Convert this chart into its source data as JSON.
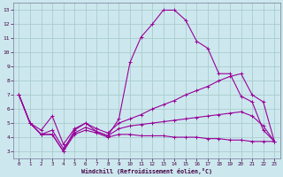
{
  "xlabel": "Windchill (Refroidissement éolien,°C)",
  "background_color": "#cce8ee",
  "grid_color": "#aacccc",
  "line_color": "#990099",
  "xlim": [
    -0.5,
    23.5
  ],
  "ylim": [
    2.5,
    13.5
  ],
  "xticks": [
    0,
    1,
    2,
    3,
    4,
    5,
    6,
    7,
    8,
    9,
    10,
    11,
    12,
    13,
    14,
    15,
    16,
    17,
    18,
    19,
    20,
    21,
    22,
    23
  ],
  "yticks": [
    3,
    4,
    5,
    6,
    7,
    8,
    9,
    10,
    11,
    12,
    13
  ],
  "s1_x": [
    0,
    1,
    2,
    3,
    4,
    5,
    6,
    7,
    8,
    9,
    10,
    11,
    12,
    13,
    14,
    15,
    16,
    17,
    18,
    19,
    20,
    21,
    22,
    23
  ],
  "s1_y": [
    7.0,
    5.0,
    4.2,
    4.2,
    3.0,
    4.5,
    5.0,
    4.4,
    4.1,
    5.3,
    9.3,
    11.1,
    12.0,
    13.0,
    13.0,
    12.3,
    10.8,
    10.3,
    8.5,
    8.5,
    6.9,
    6.5,
    4.5,
    3.7
  ],
  "s2_x": [
    0,
    1,
    2,
    3,
    4,
    5,
    6,
    7,
    8,
    9,
    10,
    11,
    12,
    13,
    14,
    15,
    16,
    17,
    18,
    19,
    20,
    21,
    22,
    23
  ],
  "s2_y": [
    7.0,
    5.0,
    4.5,
    5.5,
    3.5,
    4.6,
    5.0,
    4.6,
    4.3,
    5.0,
    5.3,
    5.6,
    6.0,
    6.3,
    6.6,
    7.0,
    7.3,
    7.6,
    8.0,
    8.3,
    8.5,
    7.0,
    6.5,
    3.7
  ],
  "s3_x": [
    0,
    1,
    2,
    3,
    4,
    5,
    6,
    7,
    8,
    9,
    10,
    11,
    12,
    13,
    14,
    15,
    16,
    17,
    18,
    19,
    20,
    21,
    22,
    23
  ],
  "s3_y": [
    7.0,
    5.0,
    4.2,
    4.5,
    3.2,
    4.3,
    4.7,
    4.4,
    4.1,
    4.6,
    4.8,
    4.9,
    5.0,
    5.1,
    5.2,
    5.3,
    5.4,
    5.5,
    5.6,
    5.7,
    5.8,
    5.5,
    4.8,
    3.7
  ],
  "s4_x": [
    0,
    1,
    2,
    3,
    4,
    5,
    6,
    7,
    8,
    9,
    10,
    11,
    12,
    13,
    14,
    15,
    16,
    17,
    18,
    19,
    20,
    21,
    22,
    23
  ],
  "s4_y": [
    7.0,
    5.0,
    4.2,
    4.2,
    3.0,
    4.2,
    4.5,
    4.3,
    4.0,
    4.2,
    4.2,
    4.1,
    4.1,
    4.1,
    4.0,
    4.0,
    4.0,
    3.9,
    3.9,
    3.8,
    3.8,
    3.7,
    3.7,
    3.7
  ]
}
